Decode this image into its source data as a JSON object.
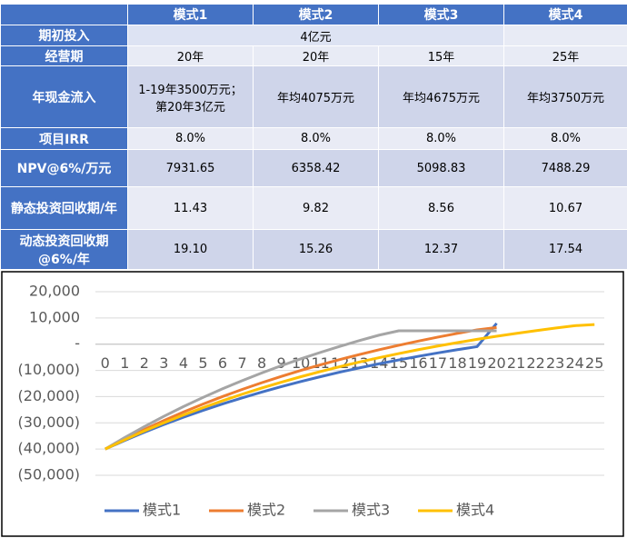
{
  "table": {
    "columns": [
      "模式1",
      "模式2",
      "模式3",
      "模式4"
    ],
    "rows": [
      {
        "label": "期初投入",
        "cells": [
          "4亿元"
        ]
      },
      {
        "label": "经营期",
        "cells": [
          "20年",
          "20年",
          "15年",
          "25年"
        ]
      },
      {
        "label": "年现金流入",
        "cells": [
          [
            "1-19年3500万元；",
            "第20年3亿元"
          ],
          "年均4075万元",
          "年均4675万元",
          "年均3750万元"
        ]
      },
      {
        "label": "项目IRR",
        "cells": [
          "8.0%",
          "8.0%",
          "8.0%",
          "8.0%"
        ]
      },
      {
        "label": "NPV@6%/万元",
        "cells": [
          "7931.65",
          "6358.42",
          "5098.83",
          "7488.29"
        ]
      },
      {
        "label": "静态投资回收期/年",
        "cells": [
          "11.43",
          "9.82",
          "8.56",
          "10.67"
        ]
      },
      {
        "label": "动态投资回收期@6%/年",
        "cells": [
          "19.10",
          "15.26",
          "12.37",
          "17.54"
        ]
      }
    ]
  },
  "chart_data": {
    "type": "line",
    "categories": [
      "0",
      "1",
      "2",
      "3",
      "4",
      "5",
      "6",
      "7",
      "8",
      "9",
      "10",
      "11",
      "12",
      "13",
      "14",
      "15",
      "16",
      "17",
      "18",
      "19",
      "20",
      "21",
      "22",
      "23",
      "24",
      "25"
    ],
    "series": [
      {
        "name": "模式1",
        "color": "#4472c4",
        "values": [
          -40000,
          -36698,
          -33585,
          -30645,
          -27872,
          -25258,
          -22790,
          -20463,
          -18265,
          -16193,
          -14240,
          -12396,
          -10656,
          -9015,
          -7468,
          -6008,
          -4629,
          -3331,
          -2102,
          -947,
          7932,
          null,
          null,
          null,
          null,
          null
        ]
      },
      {
        "name": "模式2",
        "color": "#ed7d31",
        "values": [
          -40000,
          -36157,
          -32530,
          -29108,
          -25880,
          -22836,
          -19963,
          -17253,
          -14694,
          -12282,
          -10008,
          -7861,
          -5835,
          -3924,
          -2123,
          -424,
          1182,
          2694,
          4124,
          5469,
          6358,
          null,
          null,
          null,
          null,
          null
        ]
      },
      {
        "name": "模式3",
        "color": "#a5a5a5",
        "values": [
          -40000,
          -35590,
          -31431,
          -27504,
          -23801,
          -20309,
          -17013,
          -13904,
          -10968,
          -8201,
          -5592,
          -3128,
          -805,
          1388,
          3454,
          5099,
          5099,
          5099,
          5099,
          5099,
          5099,
          null,
          null,
          null,
          null,
          null
        ]
      },
      {
        "name": "模式4",
        "color": "#ffc000",
        "values": [
          -40000,
          -36464,
          -33126,
          -29976,
          -27006,
          -24205,
          -21561,
          -19068,
          -16713,
          -14493,
          -12400,
          -10424,
          -8560,
          -6801,
          -5144,
          -3580,
          -2103,
          -711,
          605,
          1843,
          3013,
          4115,
          5158,
          6136,
          7063,
          7488
        ]
      }
    ],
    "ylim": [
      -50000,
      20000
    ],
    "yticks": [
      {
        "value": 20000,
        "label": "20,000"
      },
      {
        "value": 10000,
        "label": "10,000"
      },
      {
        "value": 0,
        "label": "-"
      },
      {
        "value": -10000,
        "label": "(10,000)"
      },
      {
        "value": -20000,
        "label": "(20,000)"
      },
      {
        "value": -30000,
        "label": "(30,000)"
      },
      {
        "value": -40000,
        "label": "(40,000)"
      },
      {
        "value": -50000,
        "label": "(50,000)"
      }
    ],
    "grid": true,
    "legend": "bottom"
  }
}
